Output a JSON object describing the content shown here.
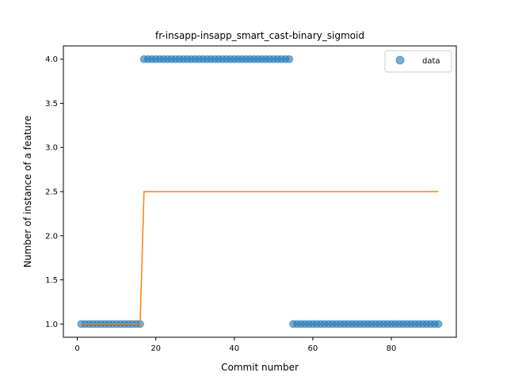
{
  "chart_data": {
    "type": "scatter",
    "title": "fr-insapp-insapp_smart_cast-binary_sigmoid",
    "xlabel": "Commit number",
    "ylabel": "Number of instance of a feature",
    "xlim": [
      -3.55,
      96.55
    ],
    "ylim": [
      0.85,
      4.15
    ],
    "xticks": [
      0,
      20,
      40,
      60,
      80
    ],
    "yticks": [
      1.0,
      1.5,
      2.0,
      2.5,
      3.0,
      3.5,
      4.0
    ],
    "xtick_labels": [
      "0",
      "20",
      "40",
      "60",
      "80"
    ],
    "ytick_labels": [
      "1.0",
      "1.5",
      "2.0",
      "2.5",
      "3.0",
      "3.5",
      "4.0"
    ],
    "grid": false,
    "legend": {
      "placement": "top-right",
      "entries": [
        "data"
      ]
    },
    "colors": {
      "data": "#1f77b4",
      "fit": "#ff7f0e"
    },
    "series": [
      {
        "name": "data",
        "kind": "scatter",
        "segments": [
          {
            "x_start": 1,
            "x_end": 16,
            "y": 1.0
          },
          {
            "x_start": 17,
            "x_end": 54,
            "y": 4.0
          },
          {
            "x_start": 55,
            "x_end": 92,
            "y": 1.0
          }
        ]
      },
      {
        "kind": "line",
        "x": [
          1,
          16,
          17,
          92
        ],
        "y": [
          1.0,
          1.0,
          2.5,
          2.5
        ]
      }
    ]
  }
}
